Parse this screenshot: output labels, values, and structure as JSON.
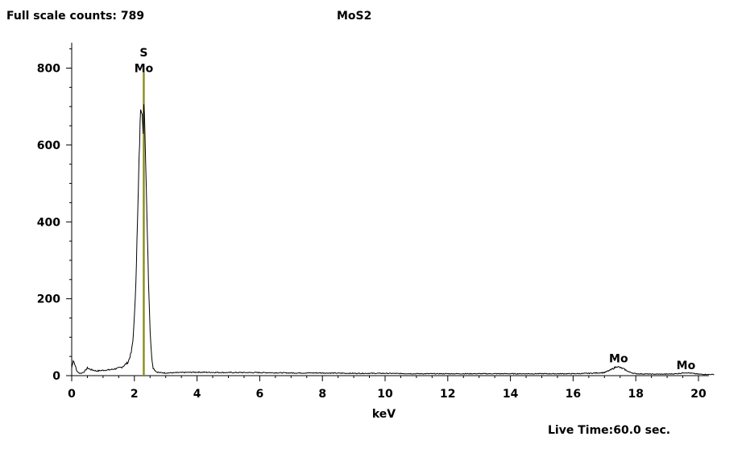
{
  "header": {
    "full_scale": "Full scale counts: 789",
    "sample": "MoS2"
  },
  "footer": {
    "live_time": "Live Time:60.0 sec."
  },
  "chart_data": {
    "type": "line",
    "title": "MoS2",
    "xlabel": "keV",
    "ylabel": "",
    "xlim": [
      0,
      20.5
    ],
    "ylim": [
      0,
      870
    ],
    "x_ticks": [
      0,
      2,
      4,
      6,
      8,
      10,
      12,
      14,
      16,
      18,
      20
    ],
    "y_ticks": [
      0,
      200,
      400,
      600,
      800
    ],
    "grid": false,
    "series_color": "#000000",
    "marker_color": "#8a8a1a",
    "spectrum": {
      "x": [
        0.0,
        0.05,
        0.1,
        0.15,
        0.2,
        0.3,
        0.4,
        0.5,
        0.6,
        0.8,
        1.0,
        1.2,
        1.4,
        1.6,
        1.8,
        1.9,
        1.95,
        2.0,
        2.05,
        2.1,
        2.15,
        2.2,
        2.25,
        2.28,
        2.3,
        2.33,
        2.36,
        2.4,
        2.45,
        2.5,
        2.55,
        2.6,
        2.7,
        2.8,
        3.0,
        3.5,
        4.0,
        5.0,
        6.0,
        7.0,
        8.0,
        9.0,
        10.0,
        11.0,
        12.0,
        13.0,
        14.0,
        15.0,
        16.0,
        16.5,
        17.0,
        17.2,
        17.4,
        17.6,
        17.8,
        18.0,
        18.5,
        19.0,
        19.3,
        19.6,
        19.8,
        20.0,
        20.3,
        20.5
      ],
      "y": [
        20,
        40,
        30,
        15,
        8,
        6,
        10,
        20,
        16,
        12,
        14,
        15,
        18,
        22,
        35,
        60,
        90,
        150,
        250,
        400,
        560,
        700,
        690,
        640,
        705,
        650,
        560,
        420,
        250,
        120,
        50,
        20,
        10,
        8,
        7,
        8,
        9,
        8,
        8,
        7,
        7,
        6,
        6,
        5,
        5,
        5,
        5,
        5,
        5,
        6,
        8,
        15,
        24,
        18,
        9,
        5,
        4,
        4,
        5,
        8,
        6,
        4,
        3,
        3
      ]
    },
    "markers": [
      {
        "energy": 2.29,
        "counts": 789
      },
      {
        "energy": 2.31,
        "counts": 789
      }
    ],
    "annotations": [
      {
        "text": "S",
        "x": 2.3,
        "y": 830
      },
      {
        "text": "Mo",
        "x": 2.3,
        "y": 790
      },
      {
        "text": "Mo",
        "x": 17.45,
        "y": 35
      },
      {
        "text": "Mo",
        "x": 19.6,
        "y": 17
      }
    ]
  }
}
